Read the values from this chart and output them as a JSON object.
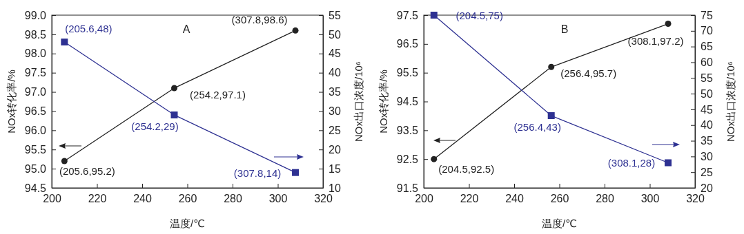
{
  "chart_data": [
    {
      "type": "line",
      "annotations": [
        "A"
      ],
      "xlabel": "温度/℃",
      "ylabel": "NOx转化率/%",
      "y2label": "NOx出口浓度/10⁶",
      "xlim": [
        200,
        320
      ],
      "xticks": [
        200,
        220,
        240,
        260,
        280,
        300,
        320
      ],
      "ylim": [
        94.5,
        99
      ],
      "yticks": [
        {
          "value": 94.5,
          "label": "94.5"
        },
        {
          "value": 95,
          "label": "95.0"
        },
        {
          "value": 95.5,
          "label": "95.5"
        },
        {
          "value": 96,
          "label": "96.0"
        },
        {
          "value": 96.5,
          "label": "96.5"
        },
        {
          "value": 97,
          "label": "97.0"
        },
        {
          "value": 97.5,
          "label": "97.5"
        },
        {
          "value": 98,
          "label": "98.0"
        },
        {
          "value": 98.5,
          "label": "98.5"
        },
        {
          "value": 99,
          "label": "99.0"
        }
      ],
      "y2lim": [
        10,
        55
      ],
      "y2ticks": [
        10,
        15,
        20,
        25,
        30,
        35,
        40,
        45,
        50,
        55
      ],
      "series": [
        {
          "color": "#222222",
          "marker": "circle",
          "x": [
            205.6,
            254.2,
            307.8
          ],
          "values": [
            95.2,
            97.1,
            98.6
          ],
          "value_labels": [
            "(205.6,95.2)",
            "(254.2,97.1)",
            "(307.8,98.6)"
          ]
        },
        {
          "color": "#2e3192",
          "marker": "square",
          "axis": "y2",
          "x": [
            205.6,
            254.2,
            307.8
          ],
          "values": [
            48,
            29,
            14
          ],
          "value_labels": [
            "(205.6,48)",
            "(254.2,29)",
            "(307.8,14)"
          ]
        }
      ]
    },
    {
      "type": "line",
      "annotations": [
        "B"
      ],
      "xlabel": "温度/℃",
      "ylabel": "NOx转化率/%",
      "y2label": "NOx出口浓度/10⁶",
      "xlim": [
        200,
        320
      ],
      "xticks": [
        200,
        220,
        240,
        260,
        280,
        300,
        320
      ],
      "ylim": [
        91.5,
        97.5
      ],
      "yticks": [
        91.5,
        92.5,
        93.5,
        94.5,
        95.5,
        96.5,
        97.5
      ],
      "y2lim": [
        20,
        75
      ],
      "y2ticks": [
        20,
        25,
        30,
        35,
        40,
        45,
        50,
        55,
        60,
        65,
        70,
        75
      ],
      "series": [
        {
          "color": "#222222",
          "marker": "circle",
          "x": [
            204.5,
            256.4,
            308.1
          ],
          "values": [
            92.5,
            95.7,
            97.2
          ],
          "value_labels": [
            "(204.5,92.5)",
            "(256.4,95.7)",
            "(308.1,97.2)"
          ]
        },
        {
          "color": "#2e3192",
          "marker": "square",
          "axis": "y2",
          "x": [
            204.5,
            256.4,
            308.1
          ],
          "values": [
            75,
            43,
            28
          ],
          "value_labels": [
            "(204.5,75)",
            "(256.4,43)",
            "(308.1,28)"
          ]
        }
      ]
    }
  ]
}
